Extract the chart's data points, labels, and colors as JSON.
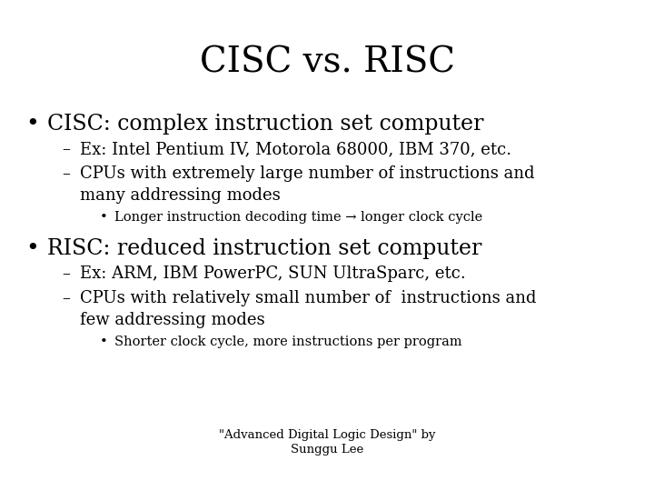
{
  "title": "CISC vs. RISC",
  "background_color": "#ffffff",
  "text_color": "#000000",
  "title_fontsize": 28,
  "body_font": "serif",
  "bullet1_text": "CISC: complex instruction set computer",
  "bullet1_fontsize": 17,
  "sub1a": "Ex: Intel Pentium IV, Motorola 68000, IBM 370, etc.",
  "sub1b_line1": "CPUs with extremely large number of instructions and",
  "sub1b_line2": "many addressing modes",
  "sub1c": "Longer instruction decoding time → longer clock cycle",
  "bullet2_text": "RISC: reduced instruction set computer",
  "bullet2_fontsize": 17,
  "sub2a": "Ex: ARM, IBM PowerPC, SUN UltraSparc, etc.",
  "sub2b_line1": "CPUs with relatively small number of  instructions and",
  "sub2b_line2": "few addressing modes",
  "sub2c": "Shorter clock cycle, more instructions per program",
  "footer_line1": "\"Advanced Digital Logic Design\" by",
  "footer_line2": "Sunggu Lee",
  "sub_fontsize": 13,
  "subsub_fontsize": 10.5,
  "footer_fontsize": 9.5
}
